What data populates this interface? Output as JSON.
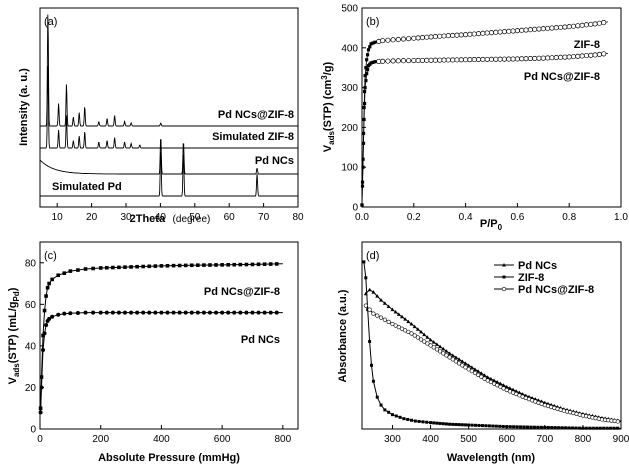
{
  "chart_data": [
    {
      "panel": "(a)",
      "type": "line",
      "xlabel": "2Theta",
      "xunit": "(degree)",
      "ylabel": "Intensity (a. u.)",
      "xlim": [
        5,
        80
      ],
      "xticks": [
        "10",
        "20",
        "30",
        "40",
        "50",
        "60",
        "70",
        "80"
      ],
      "series": [
        {
          "name": "Pd NCs@ZIF-8",
          "label": "Pd NCs@ZIF-8",
          "peaks": [
            {
              "x": 7.3,
              "h": 0.75
            },
            {
              "x": 10.4,
              "h": 0.15
            },
            {
              "x": 12.7,
              "h": 0.28
            },
            {
              "x": 14.7,
              "h": 0.06
            },
            {
              "x": 16.4,
              "h": 0.09
            },
            {
              "x": 18.0,
              "h": 0.13
            },
            {
              "x": 22.1,
              "h": 0.03
            },
            {
              "x": 24.5,
              "h": 0.05
            },
            {
              "x": 26.7,
              "h": 0.07
            },
            {
              "x": 29.6,
              "h": 0.03
            },
            {
              "x": 31.5,
              "h": 0.02
            },
            {
              "x": 40.1,
              "h": 0.02
            }
          ]
        },
        {
          "name": "Simulated ZIF-8",
          "label": "Simulated ZIF-8",
          "peaks": [
            {
              "x": 7.3,
              "h": 0.55
            },
            {
              "x": 10.4,
              "h": 0.12
            },
            {
              "x": 12.7,
              "h": 0.22
            },
            {
              "x": 14.7,
              "h": 0.05
            },
            {
              "x": 16.4,
              "h": 0.08
            },
            {
              "x": 18.0,
              "h": 0.11
            },
            {
              "x": 22.1,
              "h": 0.04
            },
            {
              "x": 24.5,
              "h": 0.05
            },
            {
              "x": 26.7,
              "h": 0.07
            },
            {
              "x": 29.6,
              "h": 0.04
            },
            {
              "x": 31.5,
              "h": 0.03
            },
            {
              "x": 34.0,
              "h": 0.02
            }
          ]
        },
        {
          "name": "Pd NCs",
          "label": "Pd NCs",
          "peaks": [
            {
              "x": 40.1,
              "h": 0.25
            },
            {
              "x": 46.7,
              "h": 0.22
            },
            {
              "x": 68.1,
              "h": 0.04
            }
          ]
        },
        {
          "name": "Simulated Pd",
          "label": "Simulated Pd",
          "peaks": [
            {
              "x": 40.1,
              "h": 0.32
            },
            {
              "x": 46.7,
              "h": 0.3
            },
            {
              "x": 68.1,
              "h": 0.15
            }
          ]
        }
      ]
    },
    {
      "panel": "(b)",
      "type": "scatter",
      "xlabel": "P/P0",
      "ylabel": "Vads(STP) (cm3/g)",
      "xlim": [
        0,
        1.0
      ],
      "ylim": [
        0,
        500
      ],
      "xticks": [
        "0.0",
        "0.2",
        "0.4",
        "0.6",
        "0.8",
        "1.0"
      ],
      "yticks": [
        "0",
        "100",
        "200",
        "300",
        "400",
        "500"
      ],
      "series": [
        {
          "name": "ZIF-8",
          "label": "ZIF-8",
          "x": [
            0.0,
            0.004,
            0.008,
            0.012,
            0.018,
            0.025,
            0.035,
            0.05,
            0.08,
            0.12,
            0.2,
            0.3,
            0.4,
            0.5,
            0.6,
            0.7,
            0.8,
            0.9,
            0.95
          ],
          "y": [
            5,
            120,
            250,
            330,
            370,
            395,
            410,
            414,
            418,
            420,
            424,
            429,
            433,
            438,
            443,
            448,
            453,
            460,
            465
          ]
        },
        {
          "name": "Pd NCs@ZIF-8",
          "label": "Pd NCs@ZIF-8",
          "x": [
            0.0,
            0.004,
            0.008,
            0.012,
            0.018,
            0.025,
            0.035,
            0.05,
            0.08,
            0.12,
            0.2,
            0.3,
            0.4,
            0.5,
            0.6,
            0.7,
            0.8,
            0.9,
            0.95
          ],
          "y": [
            5,
            100,
            220,
            300,
            335,
            355,
            362,
            365,
            366,
            367,
            368,
            369,
            370,
            371,
            372,
            374,
            377,
            382,
            386
          ]
        }
      ]
    },
    {
      "panel": "(c)",
      "type": "line",
      "xlabel": "Absolute Pressure (mmHg)",
      "ylabel": "Vads(STP) (mL/gPd)",
      "xlim": [
        0,
        850
      ],
      "ylim": [
        0,
        90
      ],
      "xticks": [
        "0",
        "200",
        "400",
        "600",
        "800"
      ],
      "yticks": [
        "0",
        "20",
        "40",
        "60",
        "80"
      ],
      "series": [
        {
          "name": "Pd NCs@ZIF-8",
          "label": "Pd NCs@ZIF-8",
          "x": [
            2,
            5,
            10,
            15,
            20,
            25,
            30,
            40,
            60,
            80,
            100,
            150,
            200,
            300,
            400,
            500,
            600,
            700,
            800
          ],
          "y": [
            10,
            25,
            45,
            57,
            64,
            68,
            70,
            72,
            74,
            75,
            76,
            77,
            77.5,
            78,
            78.5,
            78.8,
            79,
            79.2,
            79.5
          ]
        },
        {
          "name": "Pd NCs",
          "label": "Pd NCs",
          "x": [
            2,
            5,
            10,
            15,
            20,
            25,
            30,
            40,
            60,
            80,
            100,
            150,
            200,
            300,
            400,
            500,
            600,
            700,
            800
          ],
          "y": [
            8,
            20,
            38,
            46,
            50,
            52,
            53,
            54,
            55,
            55.5,
            55.7,
            56,
            56,
            56,
            56,
            56,
            56,
            56,
            56
          ]
        }
      ]
    },
    {
      "panel": "(d)",
      "type": "line",
      "xlabel": "Wavelength (nm)",
      "ylabel": "Absorbance (a.u.)",
      "xlim": [
        220,
        900
      ],
      "xticks": [
        "300",
        "400",
        "500",
        "600",
        "700",
        "800",
        "900"
      ],
      "legend": [
        "Pd NCs",
        "ZIF-8",
        "Pd NCs@ZIF-8"
      ],
      "series": [
        {
          "name": "Pd NCs",
          "label": "Pd NCs",
          "x": [
            230,
            240,
            250,
            270,
            300,
            350,
            400,
            450,
            500,
            550,
            600,
            650,
            700,
            750,
            800,
            850,
            900
          ],
          "y": [
            1.7,
            1.75,
            1.72,
            1.62,
            1.5,
            1.32,
            1.12,
            0.95,
            0.8,
            0.65,
            0.53,
            0.42,
            0.33,
            0.25,
            0.19,
            0.14,
            0.1
          ]
        },
        {
          "name": "ZIF-8",
          "label": "ZIF-8",
          "x": [
            225,
            230,
            235,
            240,
            245,
            250,
            260,
            270,
            280,
            300,
            330,
            360,
            400,
            450,
            500,
            600,
            700,
            800,
            900
          ],
          "y": [
            2.1,
            1.9,
            1.5,
            1.1,
            0.8,
            0.6,
            0.4,
            0.3,
            0.24,
            0.18,
            0.13,
            0.1,
            0.08,
            0.06,
            0.05,
            0.03,
            0.02,
            0.01,
            0.01
          ]
        },
        {
          "name": "Pd NCs@ZIF-8",
          "label": "Pd NCs@ZIF-8",
          "x": [
            230,
            240,
            250,
            270,
            300,
            350,
            400,
            450,
            500,
            550,
            600,
            650,
            700,
            750,
            800,
            850,
            900
          ],
          "y": [
            1.55,
            1.5,
            1.45,
            1.4,
            1.32,
            1.2,
            1.05,
            0.9,
            0.75,
            0.61,
            0.49,
            0.39,
            0.3,
            0.23,
            0.17,
            0.12,
            0.09
          ]
        }
      ]
    }
  ]
}
